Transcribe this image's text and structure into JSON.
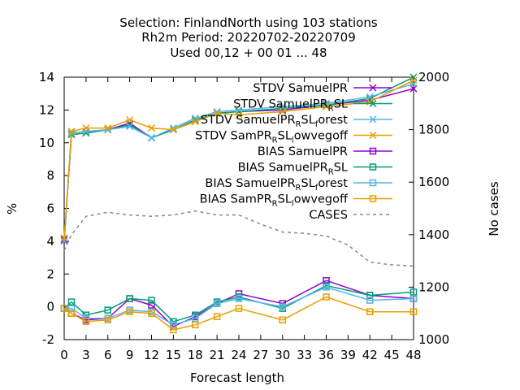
{
  "title_lines": [
    "Selection: FinlandNorth using   103 stations",
    "Rh2m   Period: 20220702-20220709",
    "Used  00,12  + 00 01 ... 48"
  ],
  "chart_data": {
    "type": "line",
    "xlabel": "Forecast length",
    "ylabel": "%",
    "y2label": "No cases",
    "xlim": [
      0,
      48
    ],
    "ylim": [
      -2,
      14
    ],
    "y2lim": [
      1000,
      2000
    ],
    "xticks": [
      0,
      3,
      6,
      9,
      12,
      15,
      18,
      21,
      24,
      27,
      30,
      33,
      36,
      39,
      42,
      45,
      48
    ],
    "yticks": [
      -2,
      0,
      2,
      4,
      6,
      8,
      10,
      12,
      14
    ],
    "y2ticks": [
      1000,
      1200,
      1400,
      1600,
      1800,
      2000
    ],
    "legend_position": "top-right",
    "series": [
      {
        "name": "STDV SamuelPR",
        "legend_text": "STDV SamuelPR",
        "color": "#9400d3",
        "marker": "x",
        "dash": false,
        "axis": "y1",
        "x": [
          0,
          1,
          3,
          6,
          9,
          12,
          15,
          18,
          21,
          24,
          30,
          36,
          42,
          48
        ],
        "y": [
          4.1,
          10.5,
          10.6,
          10.8,
          11.2,
          10.3,
          10.8,
          11.3,
          11.8,
          11.9,
          12.0,
          12.3,
          12.6,
          13.3
        ]
      },
      {
        "name": "STDV SamuelPR_RSL",
        "legend_text": "STDV SamuelPR",
        "legend_sub": "R",
        "legend_tail": "SL",
        "color": "#009e73",
        "marker": "x",
        "dash": false,
        "axis": "y1",
        "x": [
          0,
          1,
          3,
          6,
          9,
          12,
          15,
          18,
          21,
          24,
          30,
          36,
          42,
          48
        ],
        "y": [
          4.0,
          10.5,
          10.6,
          10.8,
          11.1,
          10.3,
          10.8,
          11.4,
          11.8,
          11.9,
          12.1,
          12.3,
          12.7,
          14.0
        ]
      },
      {
        "name": "STDV SamuelPR_RSL_forest",
        "legend_text": "STDV SamuelPR",
        "legend_sub": "R",
        "legend_tail": "SL",
        "legend_sub2": "f",
        "legend_tail2": "orest",
        "color": "#56b4e9",
        "marker": "x",
        "dash": false,
        "axis": "y1",
        "x": [
          0,
          1,
          3,
          6,
          9,
          12,
          15,
          18,
          21,
          24,
          30,
          36,
          42,
          48
        ],
        "y": [
          4.0,
          10.6,
          10.7,
          10.8,
          11.0,
          10.3,
          10.9,
          11.5,
          11.9,
          12.0,
          12.2,
          12.4,
          12.8,
          13.6
        ]
      },
      {
        "name": "STDV SamPR_RSL_owvegoff",
        "legend_text": "STDV SamPR",
        "legend_sub": "R",
        "legend_tail": "SL",
        "legend_sub2": "l",
        "legend_tail2": "owvegoff",
        "color": "#e69f00",
        "marker": "x",
        "dash": false,
        "axis": "y1",
        "x": [
          0,
          1,
          3,
          6,
          9,
          12,
          15,
          18,
          21,
          24,
          30,
          36,
          42,
          48
        ],
        "y": [
          4.2,
          10.7,
          10.9,
          10.9,
          11.4,
          10.9,
          10.8,
          11.3,
          11.8,
          11.7,
          11.9,
          12.2,
          12.5,
          13.8
        ]
      },
      {
        "name": "BIAS SamuelPR",
        "legend_text": "BIAS SamuelPR",
        "color": "#9400d3",
        "marker": "square",
        "dash": false,
        "axis": "y1",
        "x": [
          0,
          1,
          3,
          6,
          9,
          12,
          15,
          18,
          21,
          24,
          30,
          36,
          42,
          48
        ],
        "y": [
          -0.1,
          -0.4,
          -0.8,
          -0.7,
          0.5,
          0.1,
          -1.2,
          -0.6,
          0.2,
          0.8,
          0.2,
          1.6,
          0.7,
          0.5
        ]
      },
      {
        "name": "BIAS SamuelPR_RSL",
        "legend_text": "BIAS SamuelPR",
        "legend_sub": "R",
        "legend_tail": "SL",
        "color": "#009e73",
        "marker": "square",
        "dash": false,
        "axis": "y1",
        "x": [
          0,
          1,
          3,
          6,
          9,
          12,
          15,
          18,
          21,
          24,
          30,
          36,
          42,
          48
        ],
        "y": [
          -0.1,
          0.3,
          -0.5,
          -0.2,
          0.5,
          0.4,
          -0.9,
          -0.5,
          0.3,
          0.6,
          -0.1,
          1.3,
          0.7,
          0.9
        ]
      },
      {
        "name": "BIAS SamuelPR_RSL_forest",
        "legend_text": "BIAS SamuelPR",
        "legend_sub": "R",
        "legend_tail": "SL",
        "legend_sub2": "f",
        "legend_tail2": "orest",
        "color": "#56b4e9",
        "marker": "square",
        "dash": false,
        "axis": "y1",
        "x": [
          0,
          1,
          3,
          6,
          9,
          12,
          15,
          18,
          21,
          24,
          30,
          36,
          42,
          48
        ],
        "y": [
          -0.1,
          -0.1,
          -0.7,
          -0.7,
          -0.2,
          -0.3,
          -1.1,
          -0.7,
          0.2,
          0.5,
          0.0,
          1.2,
          0.4,
          0.5
        ]
      },
      {
        "name": "BIAS SamPR_RSL_owvegoff",
        "legend_text": "BIAS SamPR",
        "legend_sub": "R",
        "legend_tail": "SL",
        "legend_sub2": "l",
        "legend_tail2": "owvegoff",
        "color": "#e69f00",
        "marker": "square",
        "dash": false,
        "axis": "y1",
        "x": [
          0,
          1,
          3,
          6,
          9,
          12,
          15,
          18,
          21,
          24,
          30,
          36,
          42,
          48
        ],
        "y": [
          -0.1,
          -0.4,
          -0.9,
          -0.8,
          -0.3,
          -0.4,
          -1.4,
          -1.1,
          -0.6,
          -0.1,
          -0.8,
          0.6,
          -0.3,
          -0.3
        ]
      },
      {
        "name": "CASES",
        "legend_text": "CASES",
        "color": "#888888",
        "marker": "none",
        "dash": true,
        "axis": "y2",
        "x": [
          0,
          1,
          3,
          6,
          9,
          12,
          15,
          18,
          21,
          24,
          27,
          30,
          33,
          36,
          39,
          42,
          45,
          48
        ],
        "y": [
          1340,
          1400,
          1470,
          1485,
          1475,
          1470,
          1475,
          1490,
          1475,
          1475,
          1440,
          1410,
          1405,
          1395,
          1360,
          1295,
          1285,
          1280
        ]
      }
    ]
  }
}
